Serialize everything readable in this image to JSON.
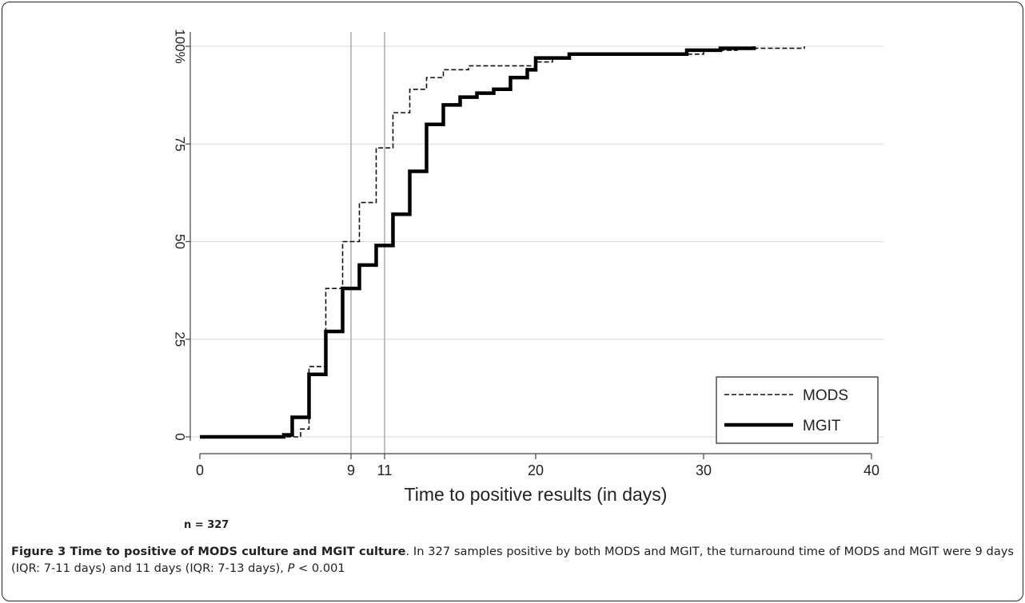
{
  "chart_data": {
    "type": "line",
    "xlabel": "Time to positive results (in days)",
    "ylabel": "",
    "xlim": [
      0,
      40
    ],
    "ylim": [
      0,
      100
    ],
    "x_ticks": [
      0,
      9,
      11,
      20,
      30,
      40
    ],
    "y_ticks": [
      0,
      25,
      50,
      75,
      100
    ],
    "y_tick_labels": [
      "0",
      "25",
      "50",
      "75",
      "100%"
    ],
    "reference_lines_x": [
      9,
      11
    ],
    "grid": "horizontal",
    "legend_position": "bottom-right",
    "series": [
      {
        "name": "MODS",
        "style": "dashed",
        "steps": [
          [
            0,
            0
          ],
          [
            6,
            2
          ],
          [
            6.5,
            18
          ],
          [
            7.5,
            38
          ],
          [
            8.5,
            50
          ],
          [
            9.5,
            60
          ],
          [
            10.5,
            74
          ],
          [
            11.5,
            83
          ],
          [
            12.5,
            89
          ],
          [
            13.5,
            92
          ],
          [
            14.5,
            94
          ],
          [
            16,
            95
          ],
          [
            20,
            96
          ],
          [
            21,
            97
          ],
          [
            22,
            98
          ],
          [
            25,
            98
          ],
          [
            30,
            99
          ],
          [
            32,
            99.5
          ],
          [
            36,
            100
          ]
        ]
      },
      {
        "name": "MGIT",
        "style": "solid",
        "steps": [
          [
            0,
            0
          ],
          [
            5,
            0.5
          ],
          [
            5.5,
            5
          ],
          [
            6.5,
            16
          ],
          [
            7.5,
            27
          ],
          [
            8.5,
            38
          ],
          [
            9.5,
            44
          ],
          [
            10.5,
            49
          ],
          [
            11.5,
            57
          ],
          [
            12.5,
            68
          ],
          [
            13.5,
            80
          ],
          [
            14.5,
            85
          ],
          [
            15.5,
            87
          ],
          [
            16.5,
            88
          ],
          [
            17.5,
            89
          ],
          [
            18.5,
            92
          ],
          [
            19.5,
            94
          ],
          [
            20,
            97
          ],
          [
            22,
            98
          ],
          [
            25,
            98
          ],
          [
            29,
            99
          ],
          [
            31,
            99.5
          ],
          [
            33,
            100
          ]
        ]
      }
    ]
  },
  "footer": {
    "n_label": "n = 327",
    "caption_title": "Figure 3 Time to positive of MODS culture and MGIT culture",
    "caption_text_1": ". In 327 samples positive by both MODS and MGIT, the turnaround time of MODS and MGIT were 9 days (IQR: 7-11 days) and 11 days (IQR: 7-13 days), ",
    "caption_p": "P",
    "caption_text_2": " < 0.001"
  }
}
